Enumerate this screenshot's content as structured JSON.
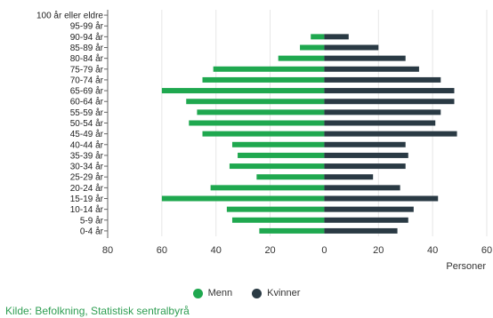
{
  "chart_data": {
    "type": "bar",
    "orientation": "horizontal-population-pyramid",
    "categories": [
      "100 år eller eldre",
      "95-99 år",
      "90-94 år",
      "85-89 år",
      "80-84 år",
      "75-79 år",
      "70-74 år",
      "65-69 år",
      "60-64 år",
      "55-59 år",
      "50-54 år",
      "45-49 år",
      "40-44 år",
      "35-39 år",
      "30-34 år",
      "25-29 år",
      "20-24 år",
      "15-19 år",
      "10-14 år",
      "5-9 år",
      "0-4 år"
    ],
    "series": [
      {
        "name": "Menn",
        "color": "#1fa84f",
        "values": [
          0,
          0,
          5,
          9,
          17,
          41,
          45,
          60,
          51,
          47,
          50,
          45,
          34,
          32,
          35,
          25,
          42,
          60,
          36,
          34,
          24
        ]
      },
      {
        "name": "Kvinner",
        "color": "#2a3a44",
        "values": [
          0,
          0,
          9,
          20,
          30,
          35,
          43,
          48,
          48,
          43,
          41,
          49,
          30,
          31,
          30,
          18,
          28,
          42,
          33,
          31,
          27
        ]
      }
    ],
    "xticks": [
      "80",
      "60",
      "40",
      "20",
      "0",
      "20",
      "40",
      "60"
    ],
    "xlim": [
      -80,
      60
    ],
    "xlabel": "Personer",
    "grid": true,
    "legend_position": "bottom-center"
  },
  "legend": {
    "men": "Menn",
    "women": "Kvinner"
  },
  "source": "Kilde: Befolkning, Statistisk sentralbyrå"
}
